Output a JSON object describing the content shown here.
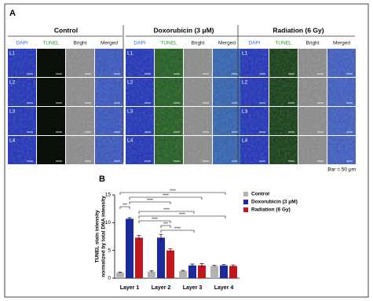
{
  "panel_a": {
    "label": "A",
    "groups": [
      "Control",
      "Doxorubicin (3 μM)",
      "Radiation (6 Gy)"
    ],
    "channels": [
      "DAPI",
      "TUNEL",
      "Bright",
      "Merged"
    ],
    "rows": [
      "L1",
      "L2",
      "L3",
      "L4"
    ],
    "scale_bar": "Bar = 50 μm"
  },
  "chart_data": {
    "type": "bar",
    "panel_label": "B",
    "y_label": [
      "TUNEL stain intensity",
      "normalized by total DNA intensity"
    ],
    "categories": [
      "Layer 1",
      "Layer 2",
      "Layer 3",
      "Layer 4"
    ],
    "series": [
      {
        "name": "Control",
        "color": "#b3b3b3",
        "values": [
          1.0,
          1.2,
          1.3,
          2.2
        ],
        "errors": [
          0.1,
          0.15,
          0.1,
          0.1
        ]
      },
      {
        "name": "Doxorubicin (3 μM)",
        "color": "#1c2a9c",
        "values": [
          10.7,
          7.3,
          2.3,
          2.3
        ],
        "errors": [
          0.2,
          0.6,
          0.25,
          0.15
        ]
      },
      {
        "name": "Radiation (6 Gy)",
        "color": "#c0181e",
        "values": [
          7.3,
          5.0,
          2.3,
          2.2
        ],
        "errors": [
          0.4,
          0.3,
          0.3,
          0.2
        ]
      }
    ],
    "ylim": [
      0,
      15
    ],
    "yticks": [
      0,
      5,
      10,
      15
    ],
    "legend": "upper right",
    "significance": [
      "****",
      "****",
      "****",
      "***",
      "****",
      "****",
      "****",
      "***",
      "****"
    ]
  }
}
